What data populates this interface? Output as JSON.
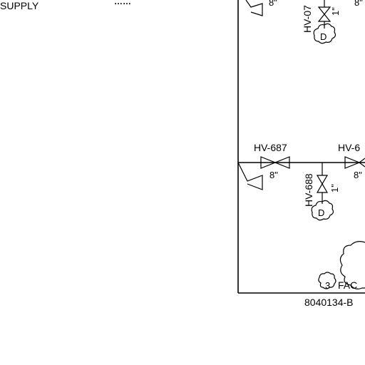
{
  "header": {
    "supply_label": "SUPPLY",
    "cropped_top_text": "……"
  },
  "valves": {
    "hv_07x": {
      "tag": "HV-07",
      "size": "1\"",
      "code": "D",
      "adjacent_size": "8\""
    },
    "hv_687": {
      "tag": "HV-687",
      "size": "8\""
    },
    "hv_688": {
      "tag": "HV-688",
      "size": "1\"",
      "code": "D"
    },
    "hv_6xx": {
      "tag": "HV-6",
      "size": "8\""
    },
    "top_left_size": "8\""
  },
  "annotations": {
    "cloud_label": "3",
    "fac_label": "FAC",
    "drawing_number": "8040134-B"
  }
}
